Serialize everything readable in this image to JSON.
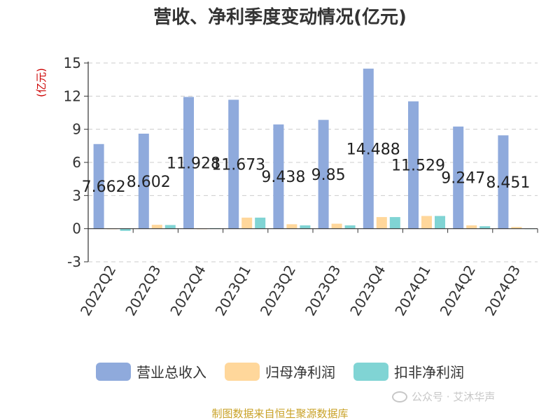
{
  "chart_data": {
    "type": "bar",
    "title": "营收、净利季度变动情况(亿元)",
    "ylabel": "(亿元)",
    "xlabel": "",
    "ylim": [
      -3,
      15
    ],
    "yticks": [
      "15",
      "12",
      "9",
      "6",
      "3",
      "0",
      "-3"
    ],
    "categories": [
      "2022Q2",
      "2022Q3",
      "2022Q4",
      "2023Q1",
      "2023Q2",
      "2023Q3",
      "2023Q4",
      "2024Q1",
      "2024Q2",
      "2024Q3"
    ],
    "series": [
      {
        "name": "营业总收入",
        "color": "#8faadc",
        "values": [
          7.662,
          8.602,
          11.928,
          11.673,
          9.438,
          9.85,
          14.488,
          11.529,
          9.247,
          8.451
        ],
        "labels": [
          "7.662",
          "8.602",
          "11.928",
          "11.673",
          "9.438",
          "9.85",
          "14.488",
          "11.529",
          "9.247",
          "8.451"
        ]
      },
      {
        "name": "归母净利润",
        "color": "#ffd79b",
        "values": [
          -0.05,
          0.35,
          -0.05,
          1.0,
          0.4,
          0.45,
          1.05,
          1.15,
          0.3,
          0.15
        ]
      },
      {
        "name": "扣非净利润",
        "color": "#80d4d4",
        "values": [
          -0.2,
          0.33,
          0.05,
          1.0,
          0.3,
          0.3,
          1.05,
          1.15,
          0.22,
          0.0
        ]
      }
    ],
    "grid": true,
    "legend_position": "bottom"
  },
  "source_note": "制图数据来自恒生聚源数据库",
  "watermark": "公众号 · 艾沐华声"
}
